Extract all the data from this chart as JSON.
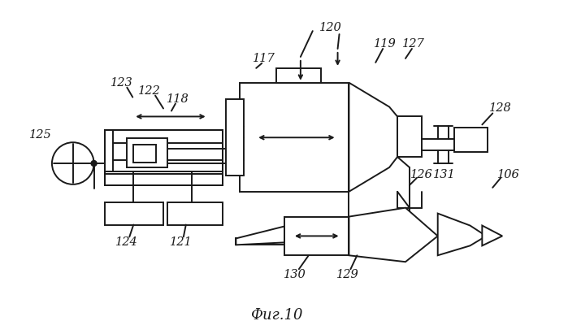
{
  "title": "Фиг.10",
  "title_fontsize": 13,
  "title_style": "italic",
  "background_color": "#ffffff",
  "line_color": "#1a1a1a",
  "figsize": [
    6.99,
    4.11
  ],
  "dpi": 100
}
